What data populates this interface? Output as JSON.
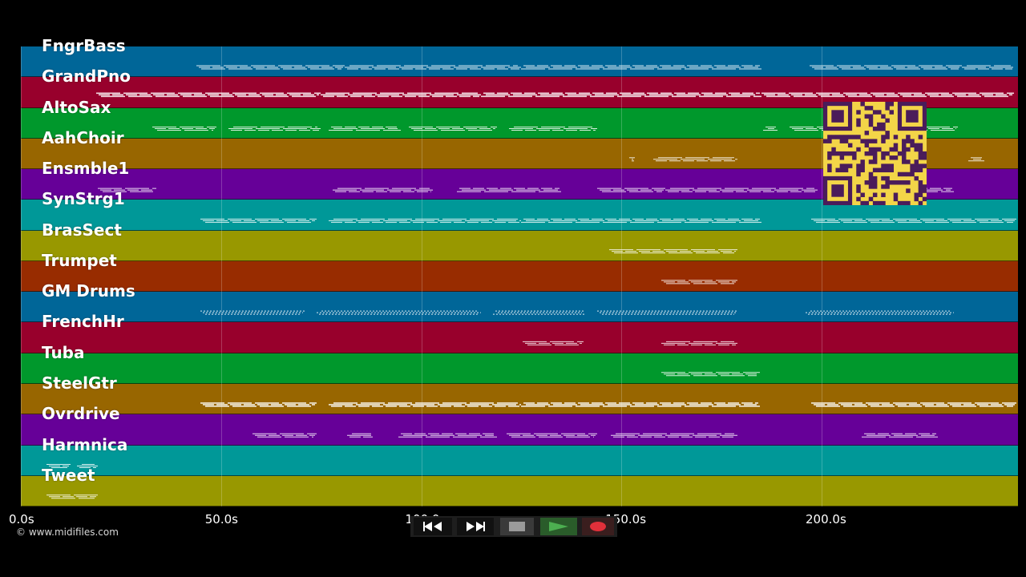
{
  "copyright": "© www.midifiles.com",
  "timeline": {
    "ticks": [
      "0.0s",
      "50.0s",
      "100.0s",
      "150.0s",
      "200.0s"
    ],
    "tick_seconds": [
      0,
      50,
      100,
      150,
      200
    ],
    "seconds_range": [
      0,
      249
    ]
  },
  "tracks": [
    {
      "name": "FngrBass",
      "color": "#006698"
    },
    {
      "name": "GrandPno",
      "color": "#98002c"
    },
    {
      "name": "AltoSax",
      "color": "#00982c"
    },
    {
      "name": "AahChoir",
      "color": "#986600"
    },
    {
      "name": "Ensmble1",
      "color": "#660098"
    },
    {
      "name": "SynStrg1",
      "color": "#009898"
    },
    {
      "name": "BrasSect",
      "color": "#989800"
    },
    {
      "name": "Trumpet",
      "color": "#982c00"
    },
    {
      "name": "GM Drums",
      "color": "#006698"
    },
    {
      "name": "FrenchHr",
      "color": "#98002c"
    },
    {
      "name": "Tuba",
      "color": "#00982c"
    },
    {
      "name": "SteelGtr",
      "color": "#986600"
    },
    {
      "name": "Ovrdrive",
      "color": "#660098"
    },
    {
      "name": "Harmnica",
      "color": "#009898"
    },
    {
      "name": "Tweet",
      "color": "#989800"
    }
  ],
  "transport": {
    "rewind_icon": "rewind-icon",
    "fast_forward_icon": "fast-forward-icon",
    "stop_icon": "stop-icon",
    "play_icon": "play-icon",
    "record_icon": "record-icon",
    "play_color": "#4caf50",
    "record_color": "#e0303a"
  }
}
